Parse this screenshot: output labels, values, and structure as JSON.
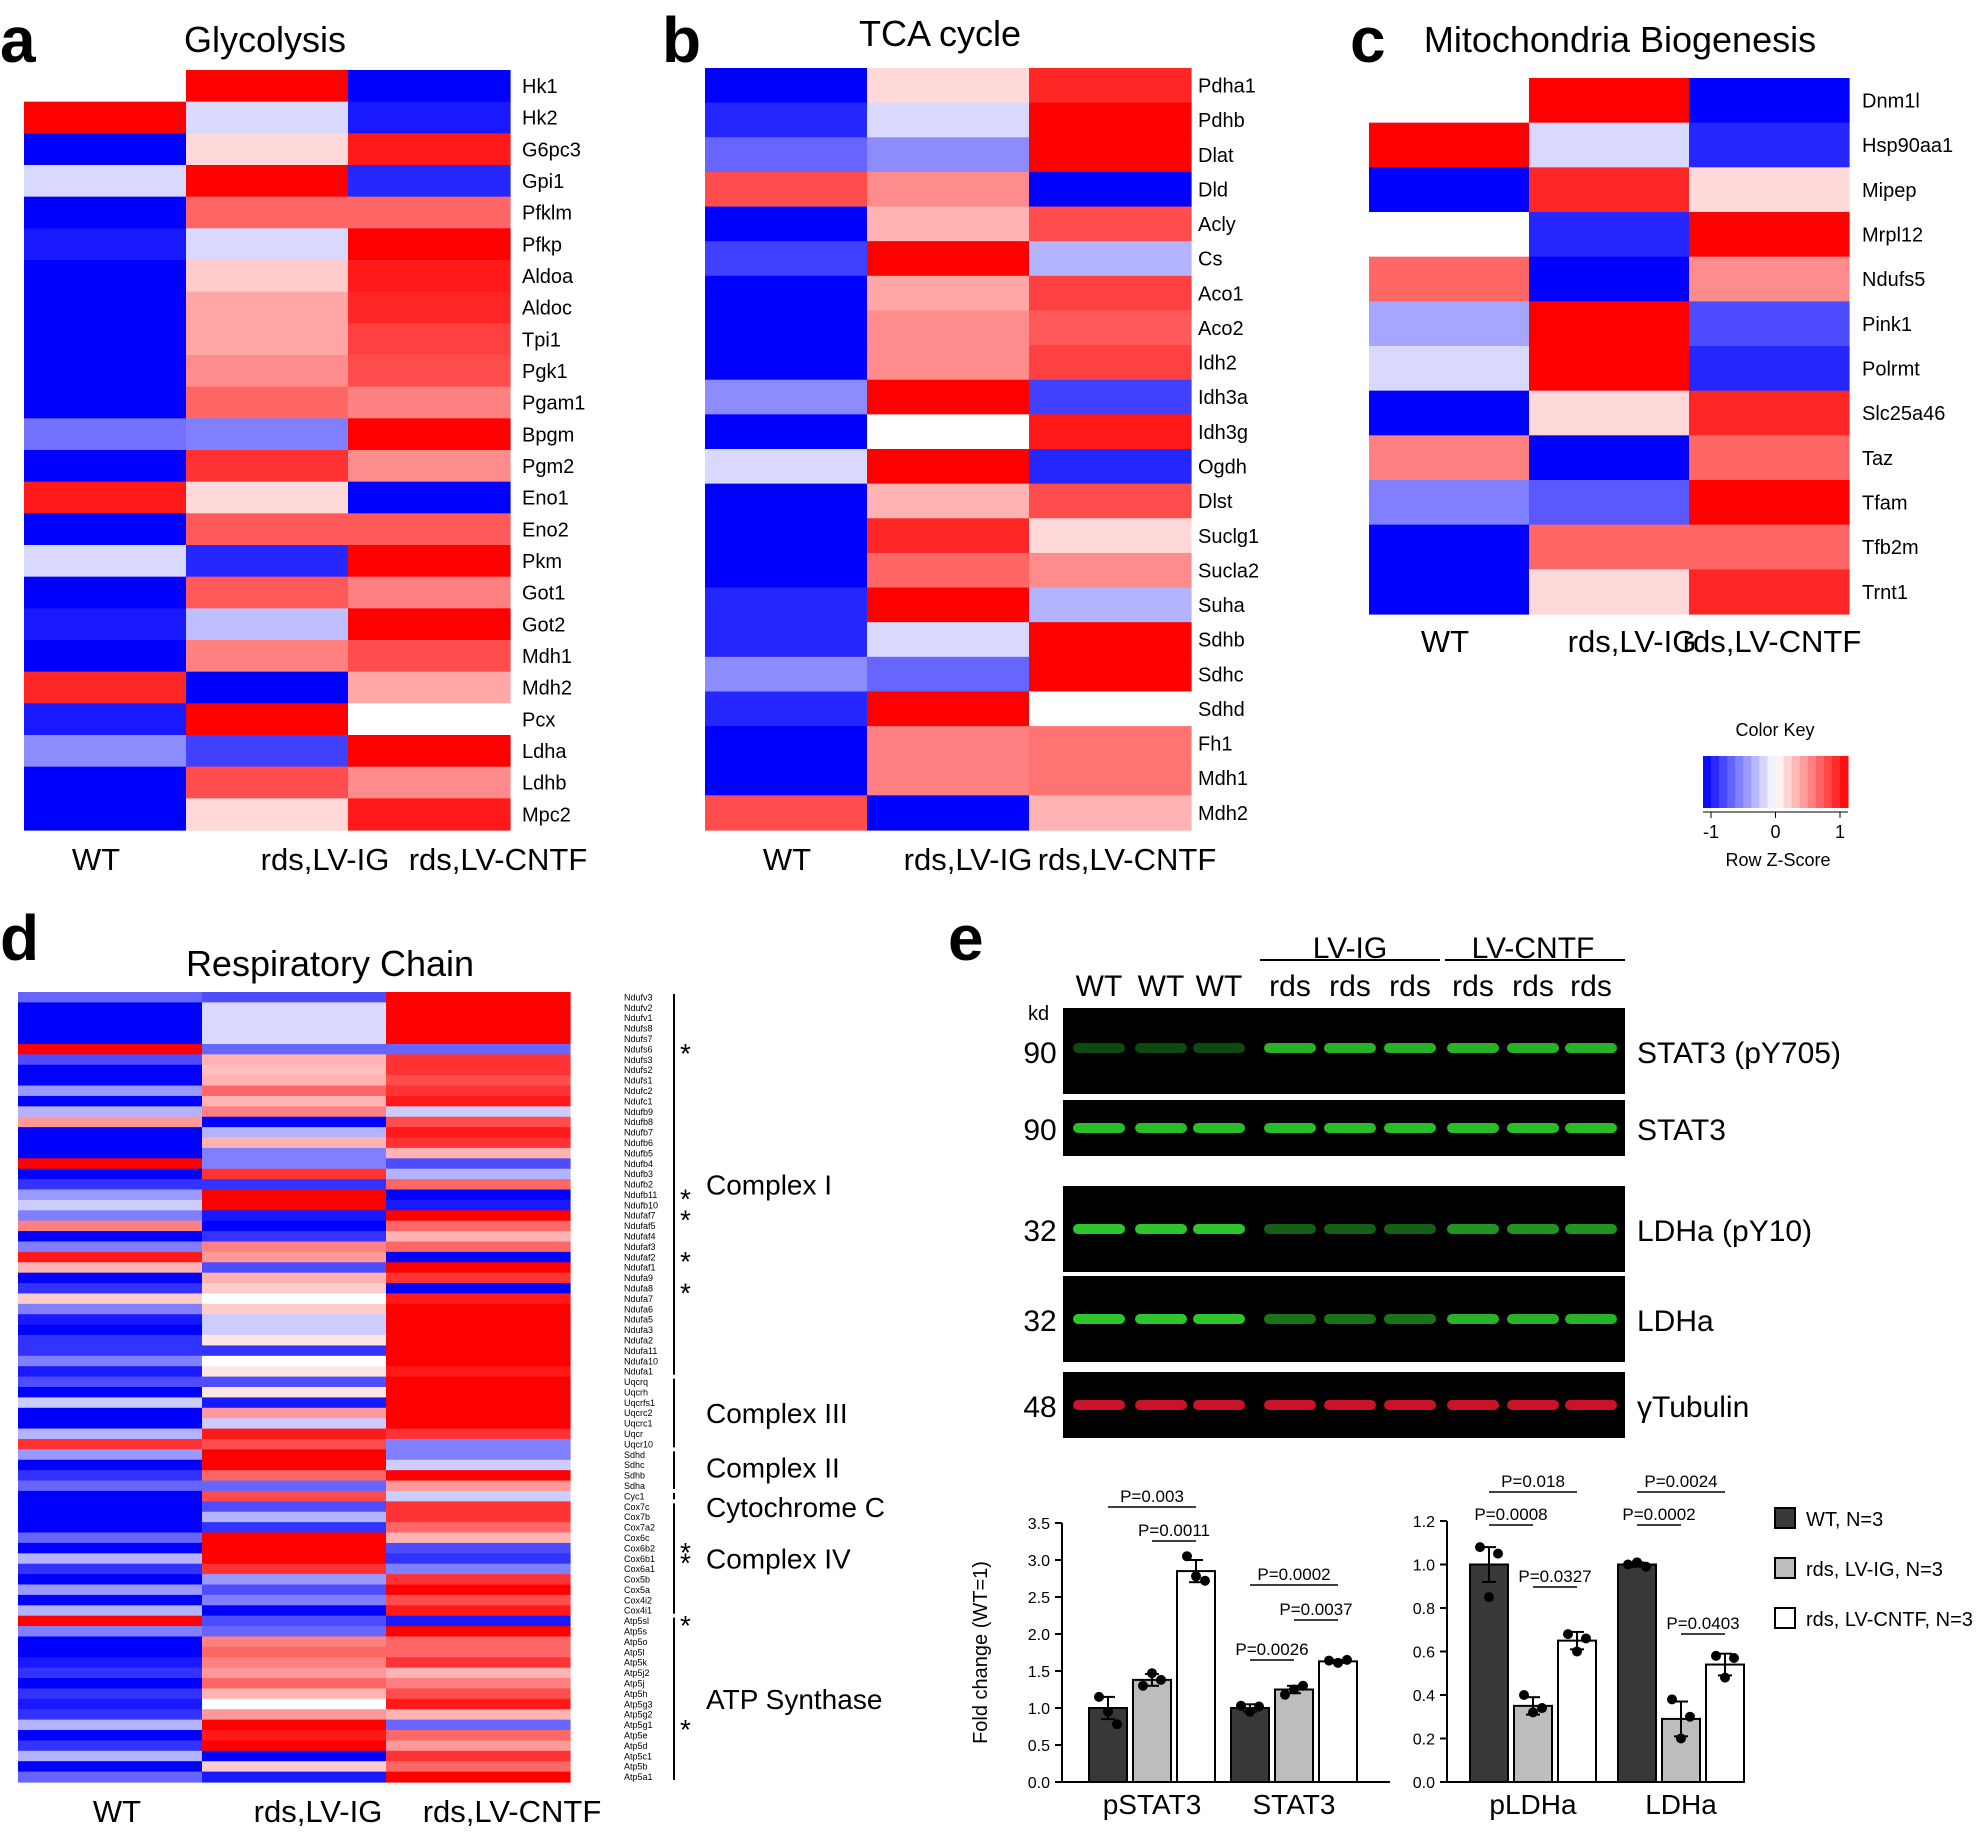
{
  "panels": {
    "a": {
      "label": "a",
      "title": "Glycolysis"
    },
    "b": {
      "label": "b",
      "title": "TCA cycle"
    },
    "c": {
      "label": "c",
      "title": "Mitochondria Biogenesis"
    },
    "d": {
      "label": "d",
      "title": "Respiratory Chain"
    },
    "e": {
      "label": "e"
    }
  },
  "columns": [
    "WT",
    "rds,LV-IG",
    "rds,LV-CNTF"
  ],
  "color_key": {
    "title": "Color Key",
    "xlabel": "Row Z-Score",
    "ticks": [
      "-1",
      "0",
      "1"
    ],
    "low_color": "#0000ff",
    "mid_color": "#ffffff",
    "high_color": "#ff0000"
  },
  "chart_data": [
    {
      "type": "heatmap",
      "title": "Glycolysis",
      "columns": [
        "WT",
        "rds,LV-IG",
        "rds,LV-CNTF"
      ],
      "rows": [
        "Hk1",
        "Hk2",
        "G6pc3",
        "Gpi1",
        "Pfklm",
        "Pfkp",
        "Aldoa",
        "Aldoc",
        "Tpi1",
        "Pgk1",
        "Pgam1",
        "Bpgm",
        "Pgm2",
        "Eno1",
        "Eno2",
        "Pkm",
        "Got1",
        "Got2",
        "Mdh1",
        "Mdh2",
        "Pcx",
        "Ldha",
        "Ldhb",
        "Mpc2"
      ],
      "values": [
        [
          0,
          1,
          -1
        ],
        [
          1,
          -0.15,
          -0.9
        ],
        [
          -1,
          0.15,
          0.9
        ],
        [
          -0.15,
          1,
          -0.85
        ],
        [
          -1,
          0.6,
          0.6
        ],
        [
          -0.9,
          -0.15,
          1
        ],
        [
          -1,
          0.2,
          0.9
        ],
        [
          -1,
          0.35,
          0.85
        ],
        [
          -1,
          0.35,
          0.75
        ],
        [
          -1,
          0.45,
          0.7
        ],
        [
          -1,
          0.6,
          0.5
        ],
        [
          -0.55,
          -0.5,
          1
        ],
        [
          -1,
          0.8,
          0.45
        ],
        [
          0.9,
          0.15,
          -1
        ],
        [
          -1,
          0.65,
          0.65
        ],
        [
          -0.15,
          -0.85,
          1
        ],
        [
          -1,
          0.65,
          0.5
        ],
        [
          -0.9,
          -0.25,
          1
        ],
        [
          -1,
          0.5,
          0.7
        ],
        [
          0.85,
          -1,
          0.35
        ],
        [
          -0.9,
          1,
          0
        ],
        [
          -0.45,
          -0.75,
          1
        ],
        [
          -1,
          0.7,
          0.45
        ],
        [
          -1,
          0.15,
          0.9
        ]
      ]
    },
    {
      "type": "heatmap",
      "title": "TCA cycle",
      "columns": [
        "WT",
        "rds,LV-IG",
        "rds,LV-CNTF"
      ],
      "rows": [
        "Pdha1",
        "Pdhb",
        "Dlat",
        "Dld",
        "Acly",
        "Cs",
        "Aco1",
        "Aco2",
        "Idh2",
        "Idh3a",
        "Idh3g",
        "Ogdh",
        "Dlst",
        "Suclg1",
        "Sucla2",
        "Suha",
        "Sdhb",
        "Sdhc",
        "Sdhd",
        "Fh1",
        "Mdh1",
        "Mdh2"
      ],
      "values": [
        [
          -1,
          0.15,
          0.85
        ],
        [
          -0.85,
          -0.15,
          1
        ],
        [
          -0.6,
          -0.45,
          1
        ],
        [
          0.7,
          0.45,
          -1
        ],
        [
          -1,
          0.3,
          0.7
        ],
        [
          -0.75,
          1,
          -0.3
        ],
        [
          -1,
          0.35,
          0.75
        ],
        [
          -1,
          0.45,
          0.65
        ],
        [
          -1,
          0.45,
          0.75
        ],
        [
          -0.45,
          1,
          -0.75
        ],
        [
          -1,
          0,
          0.9
        ],
        [
          -0.15,
          1,
          -0.85
        ],
        [
          -1,
          0.3,
          0.7
        ],
        [
          -1,
          0.85,
          0.15
        ],
        [
          -1,
          0.6,
          0.45
        ],
        [
          -0.85,
          1,
          -0.3
        ],
        [
          -0.85,
          -0.15,
          1
        ],
        [
          -0.45,
          -0.6,
          1
        ],
        [
          -0.85,
          1,
          0
        ],
        [
          -1,
          0.5,
          0.55
        ],
        [
          -1,
          0.5,
          0.55
        ],
        [
          0.7,
          -1,
          0.3
        ]
      ]
    },
    {
      "type": "heatmap",
      "title": "Mitochondria Biogenesis",
      "columns": [
        "WT",
        "rds,LV-IG",
        "rds,LV-CNTF"
      ],
      "rows": [
        "Dnm1l",
        "Hsp90aa1",
        "Mipep",
        "Mrpl12",
        "Ndufs5",
        "Pink1",
        "Polrmt",
        "Slc25a46",
        "Taz",
        "Tfam",
        "Tfb2m",
        "Trnt1"
      ],
      "values": [
        [
          0,
          1,
          -1
        ],
        [
          1,
          -0.15,
          -0.85
        ],
        [
          -1,
          0.85,
          0.15
        ],
        [
          0,
          -0.85,
          1
        ],
        [
          0.6,
          -1,
          0.45
        ],
        [
          -0.35,
          1,
          -0.7
        ],
        [
          -0.15,
          1,
          -0.85
        ],
        [
          -1,
          0.15,
          0.85
        ],
        [
          0.5,
          -1,
          0.6
        ],
        [
          -0.5,
          -0.65,
          1
        ],
        [
          -1,
          0.6,
          0.6
        ],
        [
          -1,
          0.15,
          0.85
        ]
      ]
    },
    {
      "type": "heatmap",
      "title": "Respiratory Chain",
      "columns": [
        "WT",
        "rds,LV-IG",
        "rds,LV-CNTF"
      ],
      "rows": [
        "Ndufv3",
        "Ndufv2",
        "Ndufv1",
        "Ndufs8",
        "Ndufs7",
        "Ndufs6",
        "Ndufs3",
        "Ndufs2",
        "Ndufs1",
        "Ndufc2",
        "Ndufc1",
        "Ndufb9",
        "Ndufb8",
        "Ndufb7",
        "Ndufb6",
        "Ndufb5",
        "Ndufb4",
        "Ndufb3",
        "Ndufb2",
        "Ndufb11",
        "Ndufb10",
        "Ndufaf7",
        "Ndufaf5",
        "Ndufaf4",
        "Ndufaf3",
        "Ndufaf2",
        "Ndufaf1",
        "Ndufa9",
        "Ndufa8",
        "Ndufa7",
        "Ndufa6",
        "Ndufa5",
        "Ndufa3",
        "Ndufa2",
        "Ndufa11",
        "Ndufa10",
        "Ndufa1",
        "Uqcrq",
        "Uqcrh",
        "Uqcrfs1",
        "Uqcrc2",
        "Uqcrc1",
        "Uqcr",
        "Uqcr10",
        "Sdhd",
        "Sdhc",
        "Sdhb",
        "Sdha",
        "Cyc1",
        "Cox7c",
        "Cox7b",
        "Cox7a2",
        "Cox6c",
        "Cox6b2",
        "Cox6b1",
        "Cox6a1",
        "Cox5b",
        "Cox5a",
        "Cox4i2",
        "Cox4i1",
        "Atp5sl",
        "Atp5s",
        "Atp5o",
        "Atp5l",
        "Atp5k",
        "Atp5j2",
        "Atp5j",
        "Atp5h",
        "Atp5g3",
        "Atp5g2",
        "Atp5g1",
        "Atp5e",
        "Atp5d",
        "Atp5c1",
        "Atp5b",
        "Atp5a1"
      ],
      "row_groups": [
        {
          "name": "Complex I",
          "start": 0,
          "end": 36
        },
        {
          "name": "Complex III",
          "start": 37,
          "end": 43
        },
        {
          "name": "Complex II",
          "start": 44,
          "end": 47
        },
        {
          "name": "Cytochrome C",
          "start": 48,
          "end": 48
        },
        {
          "name": "Complex IV",
          "start": 49,
          "end": 59
        },
        {
          "name": "ATP Synthase",
          "start": 60,
          "end": 75
        }
      ],
      "asterisks": [
        "Ndufs6",
        "Ndufb11",
        "Ndufaf7",
        "Ndufaf2",
        "Ndufa8",
        "Cox6b2",
        "Cox6b1",
        "Atp5sl",
        "Atp5g1"
      ],
      "values": [
        [
          -0.6,
          -0.7,
          1
        ],
        [
          -1,
          -0.15,
          1
        ],
        [
          -1,
          -0.15,
          1
        ],
        [
          -1,
          -0.15,
          1
        ],
        [
          -1,
          -0.15,
          1
        ],
        [
          1,
          -0.6,
          -0.6
        ],
        [
          -0.7,
          0.3,
          0.8
        ],
        [
          -1,
          0.25,
          0.8
        ],
        [
          -1,
          0.3,
          0.7
        ],
        [
          -0.4,
          0.6,
          0.8
        ],
        [
          -1,
          0.3,
          0.9
        ],
        [
          -0.3,
          0.5,
          -0.2
        ],
        [
          0.4,
          -1,
          0.7
        ],
        [
          -1,
          -0.3,
          0.9
        ],
        [
          -1,
          0.3,
          0.8
        ],
        [
          -1,
          -0.5,
          0.3
        ],
        [
          1,
          -0.5,
          -0.7
        ],
        [
          -1,
          0.8,
          -0.3
        ],
        [
          -0.8,
          -0.8,
          0.6
        ],
        [
          -0.4,
          1,
          -1
        ],
        [
          -0.2,
          1,
          -0.9
        ],
        [
          -0.5,
          -0.9,
          1
        ],
        [
          0.5,
          -1,
          0.6
        ],
        [
          -1,
          -0.8,
          0.3
        ],
        [
          -0.5,
          0.5,
          0.6
        ],
        [
          0.9,
          0.4,
          -1
        ],
        [
          0.3,
          -0.7,
          1
        ],
        [
          -1,
          0.3,
          0.8
        ],
        [
          -0.8,
          0.2,
          -1
        ],
        [
          0.2,
          0,
          0.9
        ],
        [
          -0.5,
          0.2,
          1
        ],
        [
          -0.9,
          -0.2,
          1
        ],
        [
          -1,
          -0.2,
          1
        ],
        [
          -0.8,
          0.1,
          1
        ],
        [
          -0.8,
          -0.8,
          1
        ],
        [
          -0.5,
          0,
          1
        ],
        [
          -0.9,
          0.1,
          0.9
        ],
        [
          -0.7,
          -0.7,
          1
        ],
        [
          -1,
          0.1,
          1
        ],
        [
          -0.2,
          -0.9,
          1
        ],
        [
          -1,
          0.4,
          1
        ],
        [
          -1,
          -0.2,
          1
        ],
        [
          -0.3,
          0.9,
          0.8
        ],
        [
          0.8,
          0.7,
          -0.5
        ],
        [
          -0.4,
          1,
          -0.5
        ],
        [
          -1,
          1,
          -0.2
        ],
        [
          -0.8,
          0.6,
          1
        ],
        [
          -0.6,
          -0.6,
          0.4
        ],
        [
          -1,
          0.7,
          -0.2
        ],
        [
          -1,
          -0.7,
          0.8
        ],
        [
          -1,
          -0.3,
          0.8
        ],
        [
          -1,
          -0.8,
          0.6
        ],
        [
          -0.6,
          1,
          0.3
        ],
        [
          -1,
          1,
          -0.7
        ],
        [
          -0.3,
          1,
          -0.8
        ],
        [
          -0.8,
          0.8,
          -0.5
        ],
        [
          -1,
          -0.4,
          0.8
        ],
        [
          -0.4,
          -0.7,
          1
        ],
        [
          -1,
          -0.5,
          0.7
        ],
        [
          -0.3,
          -1,
          0.9
        ],
        [
          1,
          -0.7,
          -0.9
        ],
        [
          -0.5,
          -0.6,
          1
        ],
        [
          -1,
          0.5,
          0.6
        ],
        [
          -1,
          0.6,
          0.6
        ],
        [
          -0.9,
          0.5,
          0.8
        ],
        [
          -0.8,
          0.4,
          0.3
        ],
        [
          -1,
          0.6,
          0.5
        ],
        [
          -0.8,
          0.3,
          0.7
        ],
        [
          -0.9,
          0,
          0.9
        ],
        [
          -0.8,
          0.4,
          0.3
        ],
        [
          -0.3,
          1,
          -0.6
        ],
        [
          -1,
          0.9,
          0.6
        ],
        [
          -0.8,
          1,
          0.4
        ],
        [
          -0.3,
          -1,
          0.8
        ],
        [
          -1,
          0.2,
          0.6
        ],
        [
          -0.6,
          -0.9,
          1
        ]
      ]
    },
    {
      "type": "bar",
      "categories": [
        "pSTAT3",
        "STAT3"
      ],
      "series": [
        {
          "name": "WT, N=3",
          "values": [
            1.0,
            1.0
          ],
          "errors": [
            0.15,
            0.05
          ],
          "points": [
            [
              1.15,
              0.95,
              0.78
            ],
            [
              1.03,
              0.95,
              1.02
            ]
          ]
        },
        {
          "name": "rds, LV-IG, N=3",
          "values": [
            1.38,
            1.25
          ],
          "errors": [
            0.08,
            0.05
          ],
          "points": [
            [
              1.3,
              1.47,
              1.38
            ],
            [
              1.18,
              1.25,
              1.3
            ]
          ]
        },
        {
          "name": "rds, LV-CNTF, N=3",
          "values": [
            2.85,
            1.63
          ],
          "errors": [
            0.15,
            0.02
          ],
          "points": [
            [
              3.05,
              2.78,
              2.72
            ],
            [
              1.64,
              1.61,
              1.65
            ]
          ]
        }
      ],
      "ylabel": "Fold change (WT=1)",
      "ylim": [
        0,
        3.5
      ],
      "yticks": [
        "0.0",
        "0.5",
        "1.0",
        "1.5",
        "2.0",
        "2.5",
        "3.0",
        "3.5"
      ],
      "annotations": [
        "P=0.003",
        "P=0.0011",
        "P=0.0002",
        "P=0.0037",
        "P=0.0026"
      ]
    },
    {
      "type": "bar",
      "categories": [
        "pLDHa",
        "LDHa"
      ],
      "series": [
        {
          "name": "WT, N=3",
          "values": [
            1.0,
            1.0
          ],
          "errors": [
            0.08,
            0.01
          ],
          "points": [
            [
              1.08,
              0.85,
              1.05
            ],
            [
              1.0,
              1.01,
              0.99
            ]
          ]
        },
        {
          "name": "rds, LV-IG, N=3",
          "values": [
            0.35,
            0.29
          ],
          "errors": [
            0.04,
            0.08
          ],
          "points": [
            [
              0.4,
              0.32,
              0.34
            ],
            [
              0.38,
              0.2,
              0.3
            ]
          ]
        },
        {
          "name": "rds, LV-CNTF, N=3",
          "values": [
            0.65,
            0.54
          ],
          "errors": [
            0.04,
            0.05
          ],
          "points": [
            [
              0.68,
              0.6,
              0.66
            ],
            [
              0.58,
              0.48,
              0.57
            ]
          ]
        }
      ],
      "ylim": [
        0,
        1.2
      ],
      "yticks": [
        "0.0",
        "0.2",
        "0.4",
        "0.6",
        "0.8",
        "1.0",
        "1.2"
      ],
      "annotations": [
        "P=0.018",
        "P=0.0008",
        "P=0.0327",
        "P=0.0024",
        "P=0.0002",
        "P=0.0403"
      ]
    }
  ],
  "blot": {
    "lane_labels": [
      "WT",
      "WT",
      "WT",
      "rds",
      "rds",
      "rds",
      "rds",
      "rds",
      "rds"
    ],
    "group_labels": [
      "LV-IG",
      "LV-CNTF"
    ],
    "kd_label": "kd",
    "rows": [
      {
        "name": "STAT3 (pY705)",
        "kd": "90"
      },
      {
        "name": "STAT3",
        "kd": "90"
      },
      {
        "name": "LDHa (pY10)",
        "kd": "32"
      },
      {
        "name": "LDHa",
        "kd": "32"
      },
      {
        "name": "γTubulin",
        "kd": "48"
      }
    ]
  }
}
